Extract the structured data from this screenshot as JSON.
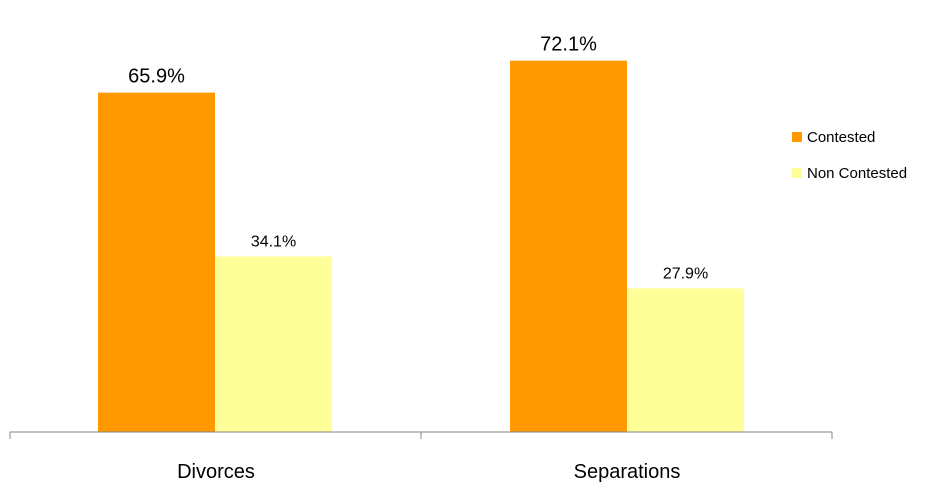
{
  "chart_data": {
    "type": "bar",
    "categories": [
      "Divorces",
      "Separations"
    ],
    "series": [
      {
        "name": "Contested",
        "values": [
          65.9,
          72.1
        ],
        "labels": [
          "65.9%",
          "72.1%"
        ],
        "color": "#FF9900"
      },
      {
        "name": "Non Contested",
        "values": [
          34.1,
          27.9
        ],
        "labels": [
          "34.1%",
          "27.9%"
        ],
        "color": "#FFFF99"
      }
    ],
    "title": "",
    "xlabel": "",
    "ylabel": "",
    "ylim": [
      0,
      80
    ],
    "grid": false,
    "legend": "right",
    "axis_color": "#868686"
  }
}
